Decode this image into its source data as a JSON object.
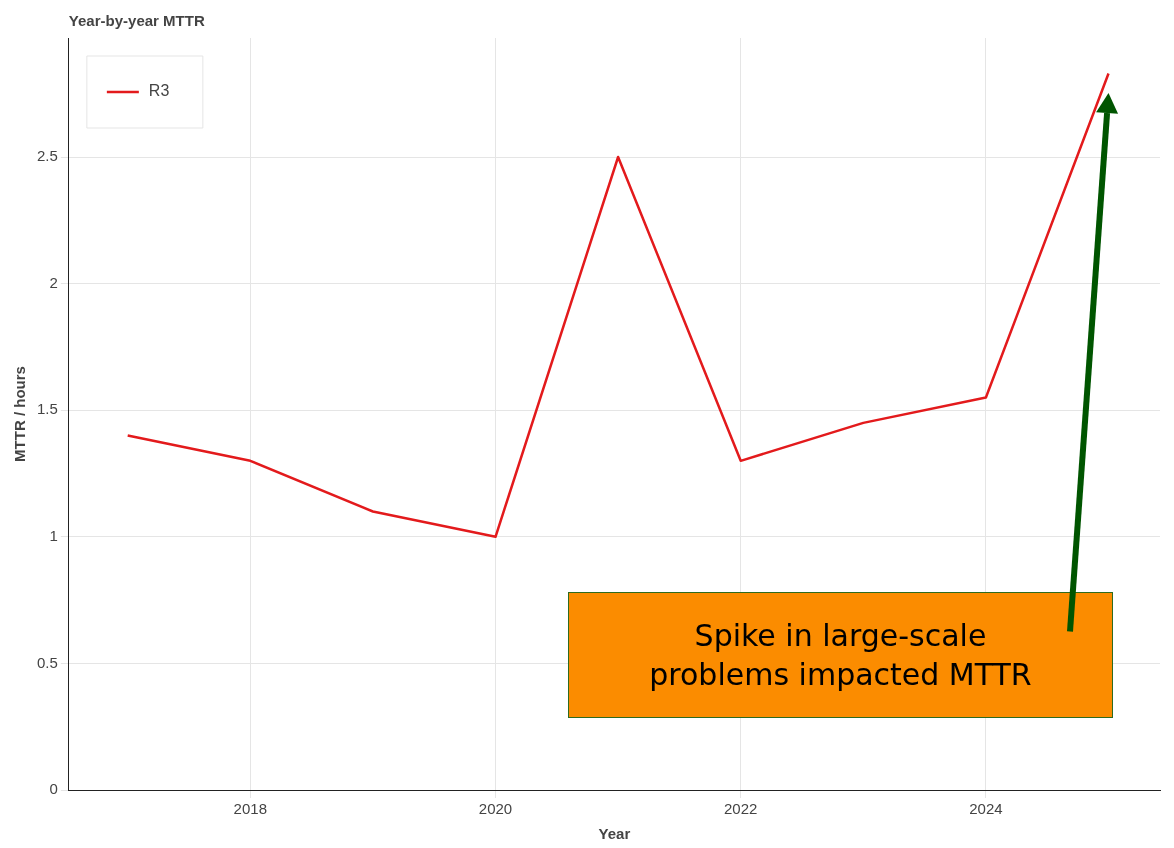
{
  "chart_data": {
    "type": "line",
    "title": "Year-by-year MTTR",
    "xlabel": "Year",
    "ylabel": "MTTR / hours",
    "x": [
      2017,
      2018,
      2019,
      2020,
      2021,
      2022,
      2023,
      2024,
      2025
    ],
    "series": [
      {
        "name": "R3",
        "color": "#e31a1c",
        "values": [
          1.4,
          1.3,
          1.1,
          1.0,
          2.5,
          1.3,
          1.45,
          1.55,
          2.83
        ]
      }
    ],
    "xlim": [
      2016.52,
      2025.42
    ],
    "xticks": [
      2018,
      2020,
      2022,
      2024
    ],
    "ylim": [
      0,
      2.97
    ],
    "yticks": [
      0,
      0.5,
      1,
      1.5,
      2,
      2.5
    ],
    "grid": true,
    "legend": "top left",
    "marker": "none",
    "line_style": "solid",
    "annotations": [
      "Spike in large-scale problems impacted MTTR"
    ]
  }
}
